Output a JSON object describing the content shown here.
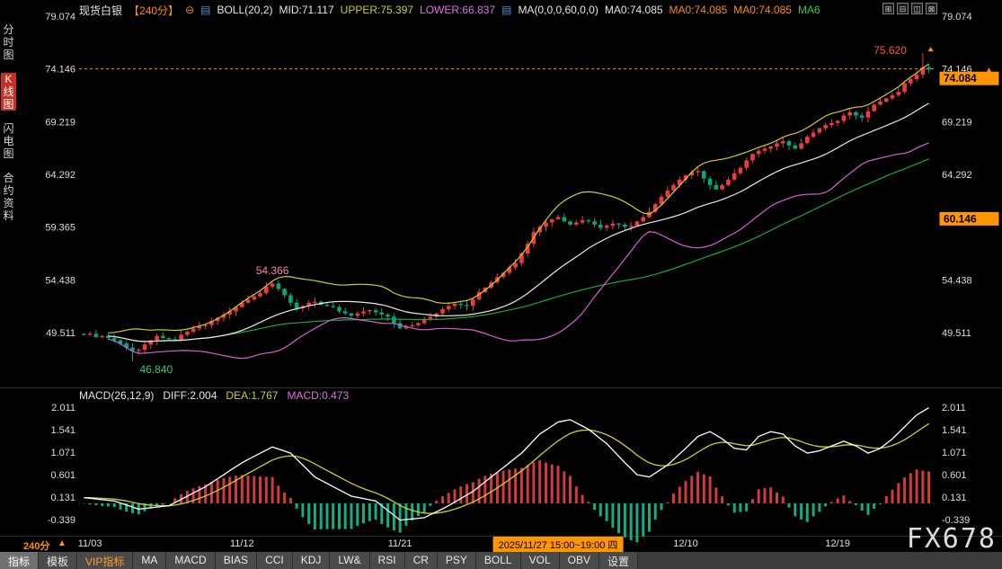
{
  "header": {
    "title": "现货白银",
    "period": "【240分】",
    "minus_icon": "⊖",
    "indicator_icon": "▤",
    "boll_name": "BOLL(20,2)",
    "boll_mid": "MID:71.117",
    "boll_upper": "UPPER:75.397",
    "boll_lower": "LOWER:66.837",
    "ma_name": "MA(0,0,0,60,0,0)",
    "ma_v1": "MA0:74.085",
    "ma_v2": "MA0:74.085",
    "ma_v3": "MA0:74.085",
    "ma_v4": "MA6",
    "window_icons": [
      "⊞",
      "⊟",
      "◫",
      "⊠"
    ]
  },
  "sidebar": {
    "items": [
      {
        "label": "分时图",
        "active": false
      },
      {
        "label": "K线图",
        "active": true
      },
      {
        "label": "闪电图",
        "active": false
      },
      {
        "label": "合约资料",
        "active": false
      }
    ]
  },
  "macd_header": {
    "name": "MACD(26,12,9)",
    "diff": "DIFF:2.004",
    "dea": "DEA:1.767",
    "macd": "MACD:0.473"
  },
  "footer": {
    "period": "240分",
    "arrow": "▲"
  },
  "watermark": "FX678",
  "tabs": [
    {
      "label": "指标",
      "active": true
    },
    {
      "label": "模板"
    },
    {
      "label": "VIP指标",
      "vip": true
    },
    {
      "label": "MA"
    },
    {
      "label": "MACD"
    },
    {
      "label": "BIAS"
    },
    {
      "label": "CCI"
    },
    {
      "label": "KDJ"
    },
    {
      "label": "LW&"
    },
    {
      "label": "RSI"
    },
    {
      "label": "CR"
    },
    {
      "label": "PSY"
    },
    {
      "label": "BOLL"
    },
    {
      "label": "VOL"
    },
    {
      "label": "OBV"
    },
    {
      "label": "设置"
    }
  ],
  "colors": {
    "accent": "#ff9500",
    "up": "#ef3b3f",
    "down": "#00a97e",
    "boll_upper": "#cdcd2c",
    "boll_mid": "#e8e8e8",
    "boll_lower": "#d65fd6",
    "ma60": "#19a838",
    "macd_diff": "#ffffff",
    "macd_dea": "#cdcd2c",
    "macd_pos": "#d33a3a",
    "macd_neg": "#0fae84",
    "axis_text": "#dddddd",
    "annotation_high": "#ff5050",
    "annotation_peak": "#ff7bac",
    "annotation_low": "#2ecc71",
    "sidebar_active": "#c53022"
  },
  "annotations": {
    "high": "75.620",
    "peak": "54.366",
    "low": "46.840",
    "current_box": "74.084",
    "mid_box": "60.146",
    "mid_box_value": 60.146,
    "alert_line": 74.146,
    "right_arrow": "▲"
  },
  "chart_data": {
    "type": "candlestick",
    "title": "现货白银 240分 K线图 + BOLL(20,2) + MA60, 副图 MACD(26,12,9)",
    "price_ticks": [
      "79.074",
      "74.146",
      "69.219",
      "64.292",
      "59.365",
      "54.438",
      "49.511"
    ],
    "ylim": [
      46.0,
      80.0
    ],
    "hidden_right_tick_index": 4,
    "macd_ticks": [
      "2.011",
      "1.541",
      "1.071",
      "0.601",
      "0.131",
      "-0.339"
    ],
    "dates": [
      {
        "label": "11/03",
        "index": 1
      },
      {
        "label": "11/12",
        "index": 26
      },
      {
        "label": "11/21",
        "index": 52
      },
      {
        "label": "2025/11/27 15:00~19:00 四",
        "index": 78,
        "highlight": true
      },
      {
        "label": "12/10",
        "index": 99
      },
      {
        "label": "12/19",
        "index": 124
      }
    ],
    "closes": [
      49.3,
      49.4,
      49.1,
      49.2,
      49.0,
      48.8,
      48.5,
      48.1,
      47.8,
      47.9,
      48.4,
      48.8,
      49.2,
      49.0,
      48.9,
      48.8,
      49.3,
      49.6,
      49.9,
      50.1,
      50.2,
      50.6,
      50.9,
      51.2,
      51.5,
      51.9,
      52.3,
      52.6,
      52.9,
      53.2,
      53.8,
      54.1,
      53.6,
      53.0,
      52.3,
      51.8,
      52.0,
      52.3,
      52.4,
      52.1,
      52.0,
      51.9,
      51.5,
      51.3,
      51.1,
      51.3,
      51.5,
      51.6,
      51.4,
      51.2,
      51.0,
      50.4,
      49.9,
      50.1,
      50.2,
      50.4,
      50.8,
      51.0,
      51.3,
      51.7,
      52.0,
      52.2,
      52.1,
      52.0,
      52.6,
      53.3,
      53.7,
      54.2,
      54.7,
      55.1,
      55.6,
      56.0,
      56.9,
      57.8,
      58.9,
      59.4,
      59.8,
      60.1,
      60.3,
      59.9,
      59.6,
      59.8,
      60.0,
      59.9,
      59.6,
      59.3,
      59.5,
      59.7,
      59.6,
      59.4,
      59.5,
      59.9,
      60.3,
      60.8,
      61.5,
      62.2,
      62.8,
      63.3,
      63.8,
      64.2,
      64.5,
      64.6,
      63.9,
      63.3,
      62.9,
      63.3,
      63.8,
      64.4,
      64.9,
      65.6,
      66.2,
      66.5,
      66.7,
      66.9,
      67.2,
      67.4,
      67.0,
      66.7,
      67.2,
      67.8,
      68.2,
      68.6,
      68.9,
      69.1,
      69.3,
      69.8,
      70.1,
      69.8,
      69.6,
      70.2,
      70.8,
      71.1,
      71.4,
      71.7,
      72.0,
      72.8,
      73.2,
      73.6,
      74.3,
      74.084
    ],
    "key_points": {
      "low_index": 8,
      "low": 46.84,
      "peak_index": 31,
      "peak": 54.366,
      "high_index": 138,
      "high": 75.62,
      "last_close": 74.084
    },
    "overlays": {
      "boll_period": 20,
      "boll_mult": 2,
      "ma_period": 60
    },
    "secondary": {
      "type": "macd",
      "params": [
        26,
        12,
        9
      ],
      "diff_end": 2.004,
      "dea_end": 1.767,
      "macd_end": 0.473,
      "diff_anchors": [
        [
          0,
          0.12
        ],
        [
          5,
          0.05
        ],
        [
          9,
          -0.12
        ],
        [
          14,
          -0.05
        ],
        [
          20,
          0.35
        ],
        [
          26,
          0.85
        ],
        [
          31,
          1.18
        ],
        [
          34,
          1.05
        ],
        [
          38,
          0.55
        ],
        [
          44,
          0.15
        ],
        [
          48,
          0.05
        ],
        [
          52,
          -0.35
        ],
        [
          56,
          -0.3
        ],
        [
          60,
          -0.05
        ],
        [
          64,
          0.25
        ],
        [
          68,
          0.65
        ],
        [
          72,
          1.05
        ],
        [
          75,
          1.45
        ],
        [
          78,
          1.7
        ],
        [
          80,
          1.75
        ],
        [
          83,
          1.55
        ],
        [
          86,
          1.25
        ],
        [
          89,
          0.85
        ],
        [
          91,
          0.6
        ],
        [
          93,
          0.55
        ],
        [
          96,
          0.8
        ],
        [
          99,
          1.15
        ],
        [
          101,
          1.4
        ],
        [
          103,
          1.5
        ],
        [
          105,
          1.35
        ],
        [
          107,
          1.15
        ],
        [
          109,
          1.12
        ],
        [
          111,
          1.4
        ],
        [
          113,
          1.5
        ],
        [
          115,
          1.45
        ],
        [
          117,
          1.2
        ],
        [
          119,
          1.05
        ],
        [
          121,
          1.1
        ],
        [
          123,
          1.2
        ],
        [
          125,
          1.3
        ],
        [
          127,
          1.2
        ],
        [
          129,
          1.05
        ],
        [
          131,
          1.15
        ],
        [
          133,
          1.35
        ],
        [
          135,
          1.6
        ],
        [
          137,
          1.85
        ],
        [
          139,
          2.0
        ]
      ]
    }
  }
}
